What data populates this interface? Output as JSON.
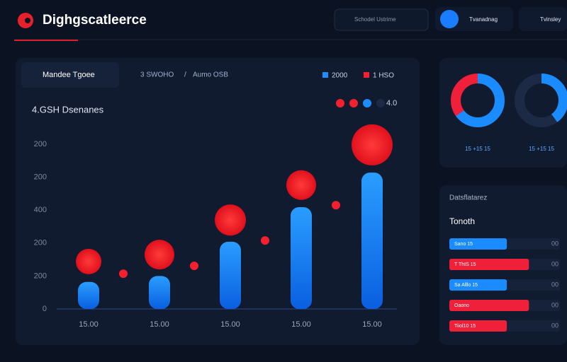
{
  "header": {
    "logo": "Dighgscatleerce",
    "search": "Schodel Ustrime",
    "button": "Tvanadnag",
    "menu": "Tvinsley"
  },
  "chart_panel": {
    "tab": "Mandee Tgoee",
    "crumbs": [
      "3 SWOHO",
      "/",
      "Aumo OSB"
    ],
    "legend": [
      {
        "name": "2000",
        "color": "#1e8cff"
      },
      {
        "name": "1 HSO",
        "color": "#f5202e"
      }
    ],
    "subtitle": "4.GSH Dsenanes",
    "dot_label": "4.0"
  },
  "chart_data": {
    "type": "bar",
    "categories": [
      "15.00",
      "15.00",
      "15.00",
      "15.00",
      "15.00"
    ],
    "ylim": [
      0,
      5
    ],
    "y_labels": [
      "0",
      "200",
      "200",
      "400",
      "200",
      "200"
    ],
    "series": [
      {
        "name": "2000",
        "color": "#1e8cff",
        "values": [
          0.82,
          1.0,
          2.04,
          3.09,
          4.14
        ]
      },
      {
        "name": "1 HSO",
        "color": "#f5202e",
        "values": [
          1.44,
          1.65,
          2.7,
          3.76,
          4.98
        ],
        "sizes": [
          18,
          21,
          22,
          21,
          29
        ]
      }
    ],
    "dots": {
      "color": "#f5202e",
      "values": [
        1.07,
        1.31,
        2.08,
        3.15
      ]
    }
  },
  "donuts": [
    {
      "values": [
        65,
        35
      ],
      "colors": [
        "#1a8cff",
        "#f0203a"
      ],
      "label": "15 +15 15"
    },
    {
      "values": [
        40,
        60
      ],
      "colors": [
        "#1a8cff",
        "#1c2a46"
      ],
      "label": "15 +15 15"
    }
  ],
  "ranking": {
    "title": "Datsflatarez",
    "subtitle": "Tonoth",
    "end_text": "00",
    "rows": [
      {
        "label": "Sano 15",
        "value": 52,
        "color": "#1a8cff"
      },
      {
        "label": "T ThIS 15",
        "value": 72,
        "color": "#f0203a"
      },
      {
        "label": "Sa Alllo 15",
        "value": 52,
        "color": "#1a8cff"
      },
      {
        "label": "Oaono",
        "value": 72,
        "color": "#f0203a"
      },
      {
        "label": "Tiiol10 15",
        "value": 52,
        "color": "#f0203a"
      }
    ]
  }
}
